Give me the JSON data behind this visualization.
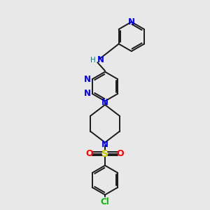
{
  "background_color": "#e8e8e8",
  "bond_color": "#1a1a1a",
  "atom_colors": {
    "N": "#0000ff",
    "N_NH": "#008080",
    "S": "#cccc00",
    "O": "#ff0000",
    "Cl": "#00bb00",
    "C": "#1a1a1a"
  },
  "figsize": [
    3.0,
    3.0
  ],
  "dpi": 100,
  "lw": 1.4
}
